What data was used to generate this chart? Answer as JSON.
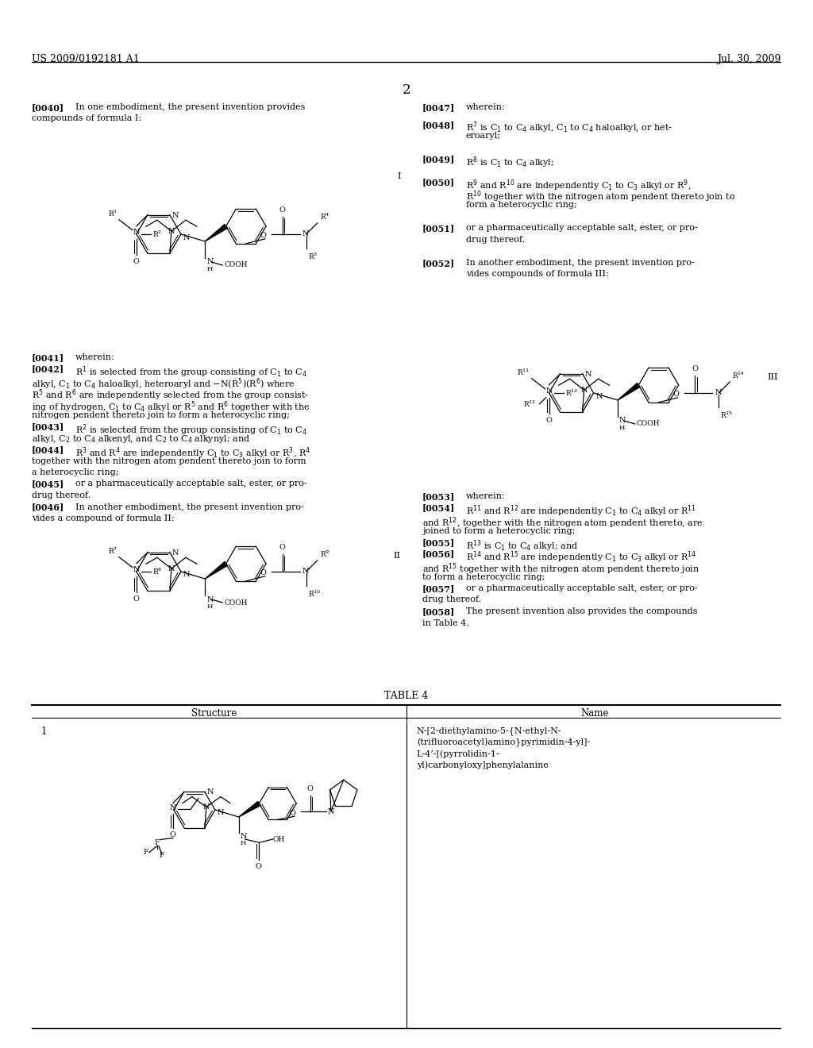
{
  "header_left": "US 2009/0192181 A1",
  "header_right": "Jul. 30, 2009",
  "page_num": "2",
  "bg_color": "#ffffff",
  "text_color": "#000000",
  "body_fs": 8.0,
  "header_fs": 9.0
}
